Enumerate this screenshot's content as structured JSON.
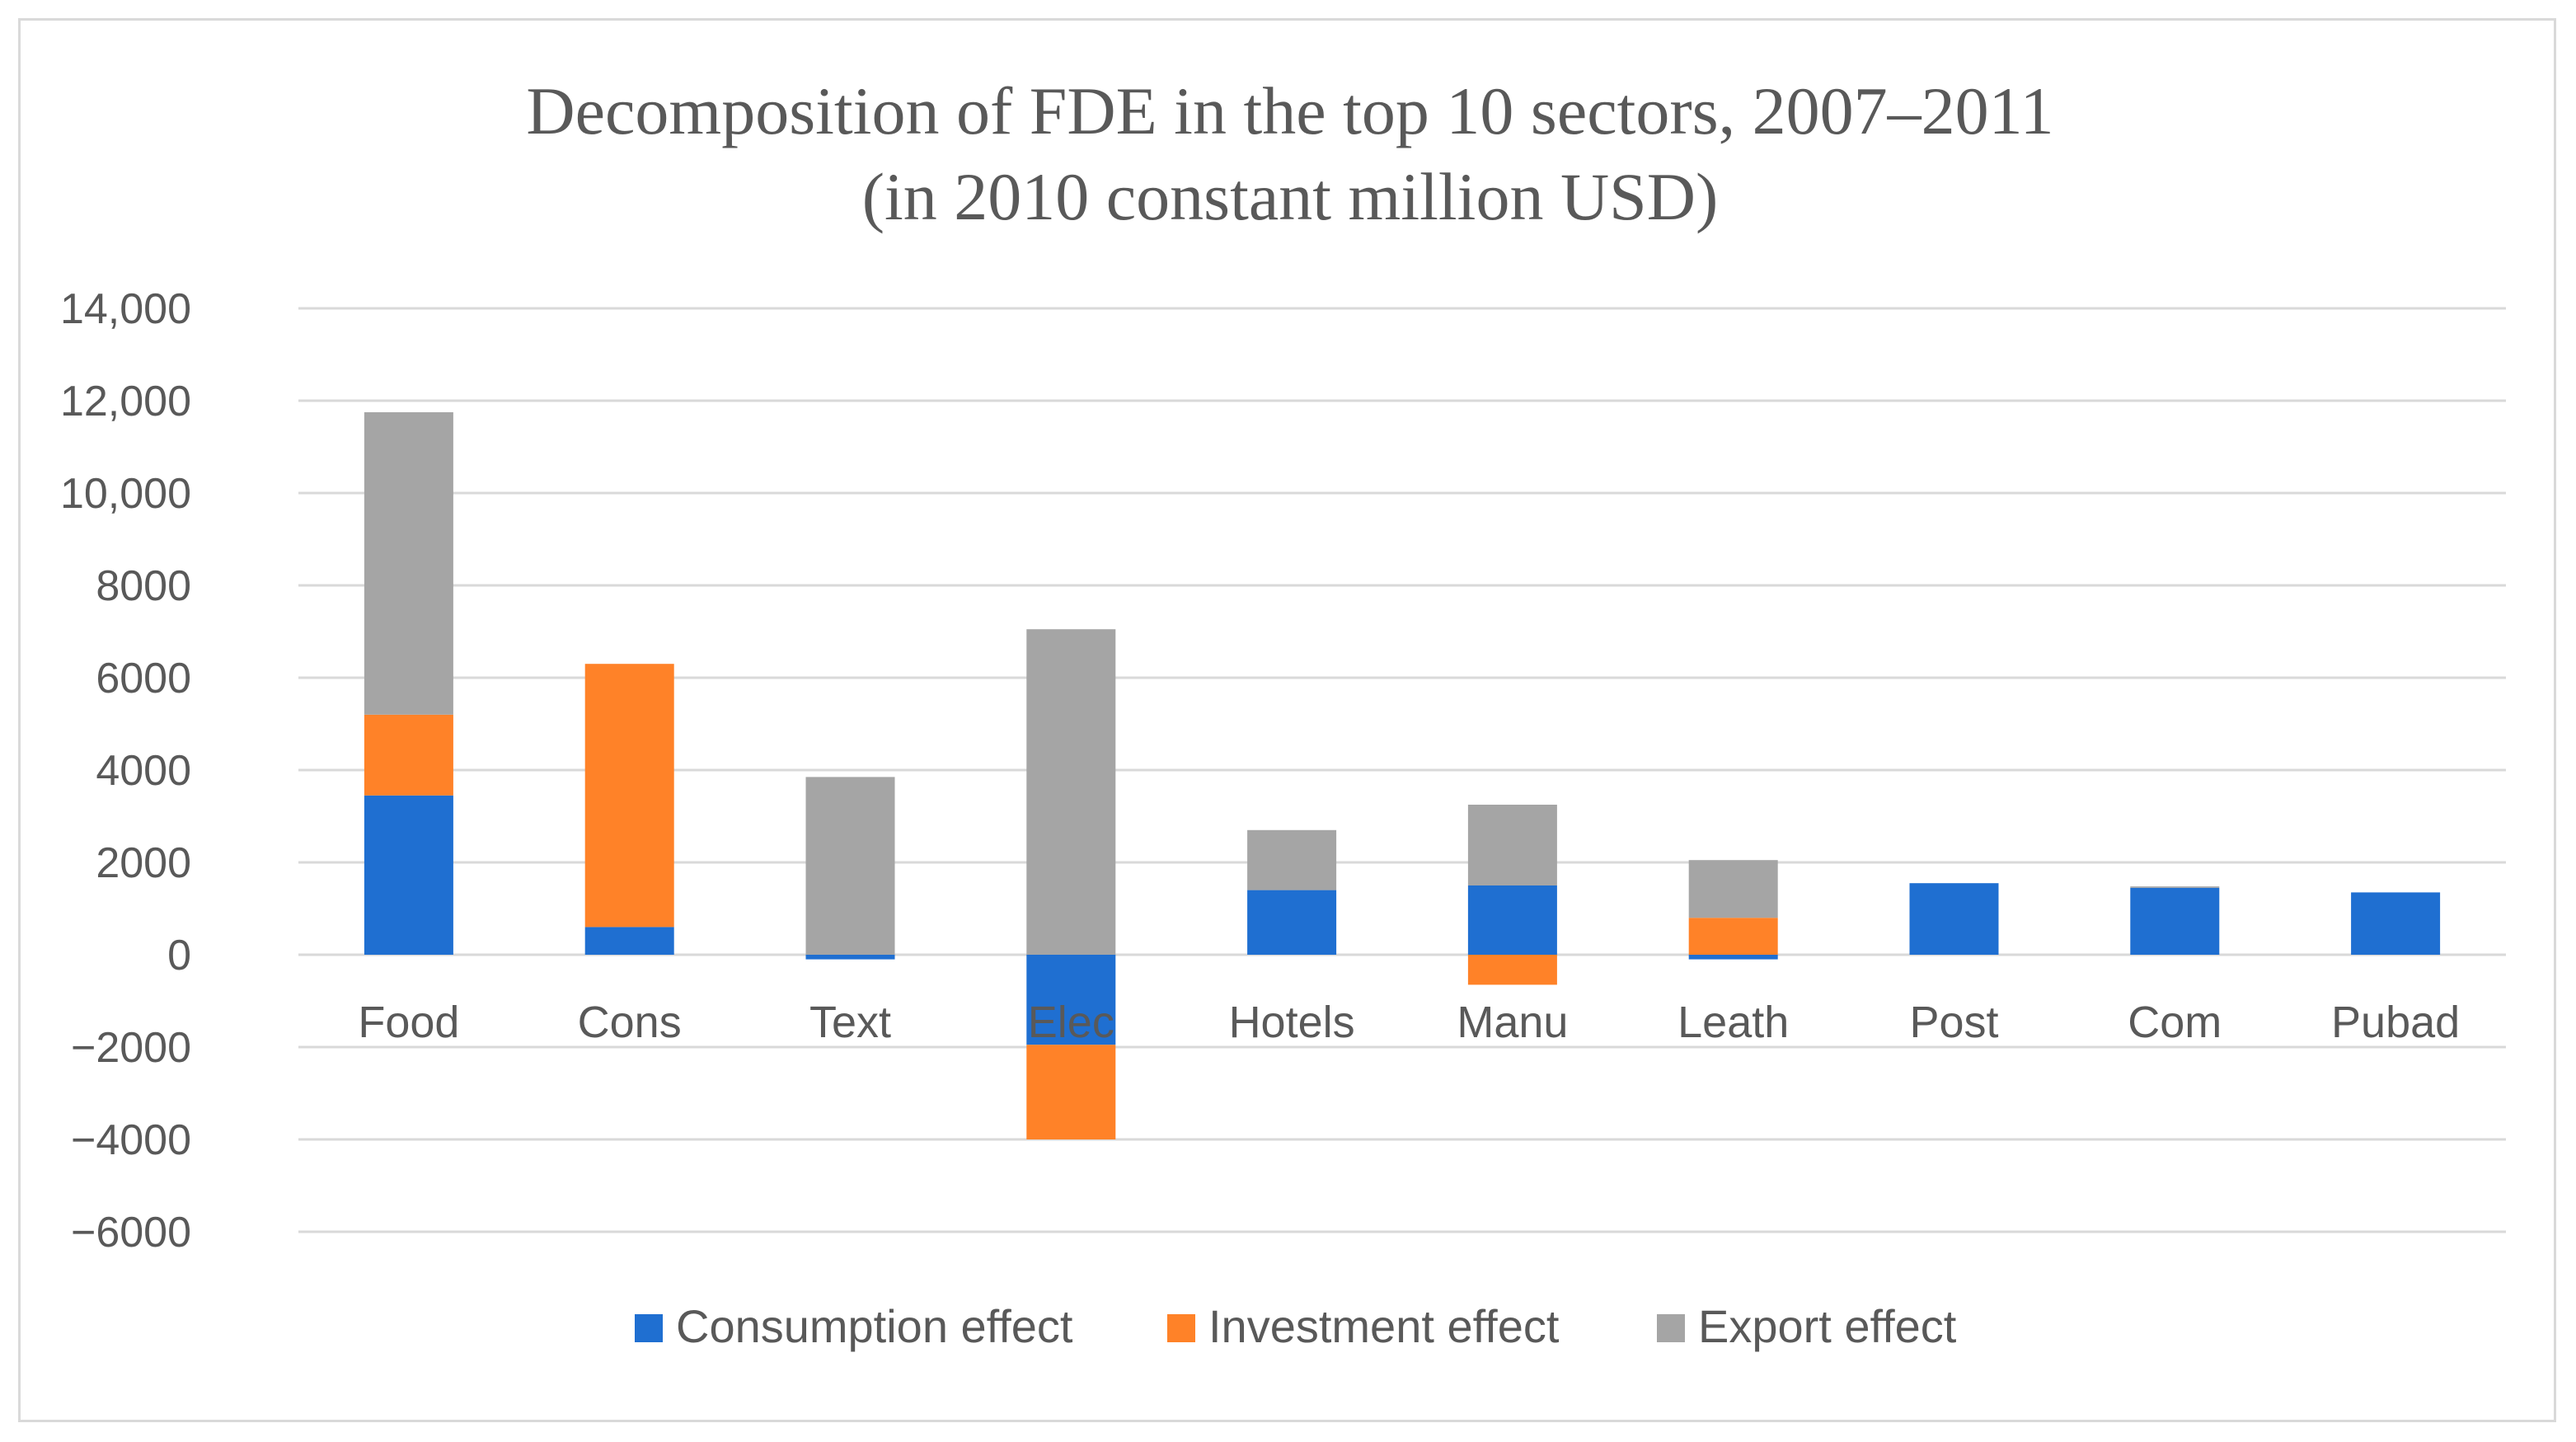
{
  "chart_data": {
    "type": "bar",
    "stacked": true,
    "title": "Decomposition of FDE in the top 10 sectors, 2007–2011",
    "subtitle": "(in 2010 constant million USD)",
    "xlabel": "",
    "ylabel": "",
    "ylim": [
      -6000,
      14000
    ],
    "yticks": [
      14000,
      12000,
      10000,
      8000,
      6000,
      4000,
      2000,
      0,
      -2000,
      -4000,
      -6000
    ],
    "ytick_labels": [
      "14,000",
      "12,000",
      "10,000",
      "8000",
      "6000",
      "4000",
      "2000",
      "0",
      "−2000",
      "−4000",
      "−6000"
    ],
    "grid": true,
    "legend_position": "bottom",
    "categories": [
      "Food",
      "Cons",
      "Text",
      "Elec",
      "Hotels",
      "Manu",
      "Leath",
      "Post",
      "Com",
      "Pubad"
    ],
    "series": [
      {
        "name": "Consumption effect",
        "color": "#1f6fd1",
        "values": [
          3450,
          600,
          -100,
          -1950,
          1400,
          1500,
          -100,
          1550,
          1450,
          1350
        ]
      },
      {
        "name": "Investment effect",
        "color": "#ff8228",
        "values": [
          1750,
          5700,
          0,
          -2050,
          0,
          -650,
          800,
          0,
          0,
          0
        ]
      },
      {
        "name": "Export effect",
        "color": "#a5a5a5",
        "values": [
          6550,
          0,
          3850,
          7050,
          1300,
          1750,
          1250,
          0,
          30,
          0
        ]
      }
    ]
  }
}
